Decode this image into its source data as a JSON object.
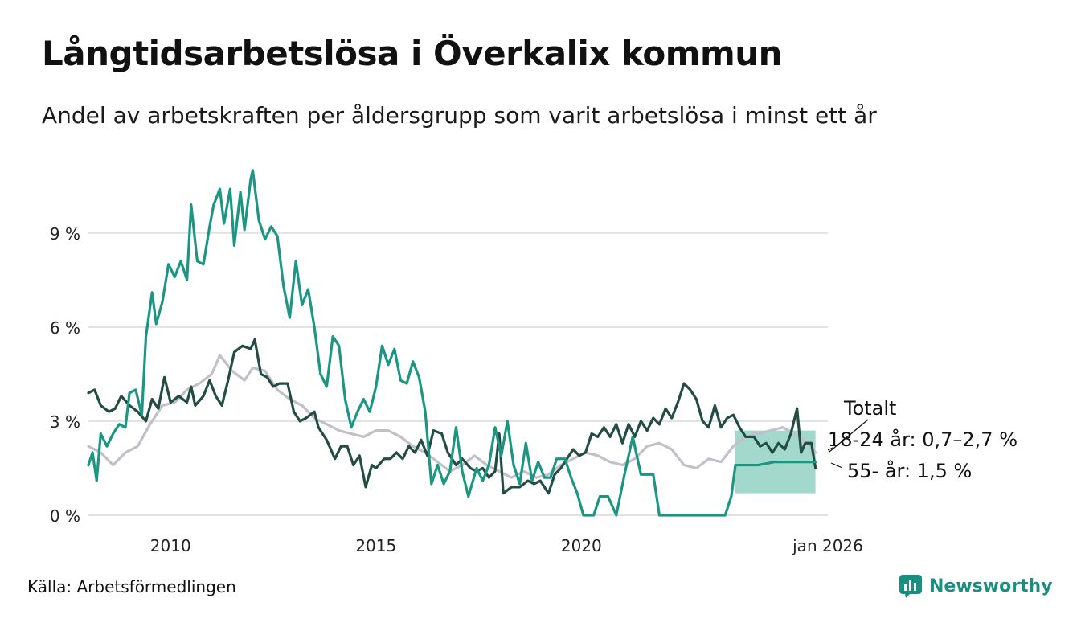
{
  "title": "Långtidsarbetslösa i Överkalix kommun",
  "subtitle": "Andel av arbetskraften per åldersgrupp som varit arbetslösa i minst ett år",
  "source": "Källa: Arbetsförmedlingen",
  "brand": "Newsworthy",
  "colors": {
    "youth": "#1a9683",
    "senior": "#234d44",
    "total": "#c2bfca",
    "band": "#a3d8cc",
    "grid": "#e1e1e1"
  },
  "chart_data": {
    "type": "line",
    "xlim": [
      2008.0,
      2026.0
    ],
    "ylim": [
      0,
      11.3
    ],
    "y_ticks": [
      {
        "value": 0,
        "label": "0 %"
      },
      {
        "value": 3,
        "label": "3 %"
      },
      {
        "value": 6,
        "label": "6 %"
      },
      {
        "value": 9,
        "label": "9 %"
      }
    ],
    "x_ticks": [
      {
        "value": 2010.0,
        "label": "2010"
      },
      {
        "value": 2015.0,
        "label": "2015"
      },
      {
        "value": 2020.0,
        "label": "2020"
      },
      {
        "value": 2026.0,
        "label": "jan 2026"
      }
    ],
    "annotations": {
      "total": "Totalt",
      "youth": "18-24 år: 0,7–2,7 %",
      "senior": "55- år: 1,5 %"
    },
    "series": [
      {
        "name": "Totalt",
        "color": "#c2bfca",
        "points": [
          [
            2008.0,
            2.2
          ],
          [
            2008.3,
            2.0
          ],
          [
            2008.6,
            1.6
          ],
          [
            2008.9,
            2.0
          ],
          [
            2009.2,
            2.2
          ],
          [
            2009.5,
            2.9
          ],
          [
            2009.8,
            3.5
          ],
          [
            2010.1,
            3.6
          ],
          [
            2010.4,
            4.0
          ],
          [
            2010.7,
            4.2
          ],
          [
            2011.0,
            4.5
          ],
          [
            2011.2,
            5.1
          ],
          [
            2011.5,
            4.6
          ],
          [
            2011.8,
            4.3
          ],
          [
            2012.0,
            4.7
          ],
          [
            2012.3,
            4.6
          ],
          [
            2012.6,
            4.0
          ],
          [
            2012.9,
            3.7
          ],
          [
            2013.2,
            3.5
          ],
          [
            2013.5,
            3.1
          ],
          [
            2013.8,
            2.9
          ],
          [
            2014.1,
            2.7
          ],
          [
            2014.4,
            2.6
          ],
          [
            2014.7,
            2.5
          ],
          [
            2015.0,
            2.7
          ],
          [
            2015.3,
            2.7
          ],
          [
            2015.6,
            2.5
          ],
          [
            2015.9,
            2.2
          ],
          [
            2016.2,
            2.0
          ],
          [
            2016.5,
            1.7
          ],
          [
            2016.8,
            1.4
          ],
          [
            2017.1,
            1.6
          ],
          [
            2017.4,
            1.9
          ],
          [
            2017.7,
            1.6
          ],
          [
            2018.0,
            1.4
          ],
          [
            2018.3,
            1.2
          ],
          [
            2018.6,
            1.4
          ],
          [
            2018.9,
            1.2
          ],
          [
            2019.2,
            1.3
          ],
          [
            2019.5,
            1.6
          ],
          [
            2019.8,
            1.8
          ],
          [
            2020.1,
            2.0
          ],
          [
            2020.4,
            1.9
          ],
          [
            2020.7,
            1.7
          ],
          [
            2021.0,
            1.6
          ],
          [
            2021.3,
            1.8
          ],
          [
            2021.6,
            2.2
          ],
          [
            2021.9,
            2.3
          ],
          [
            2022.2,
            2.1
          ],
          [
            2022.5,
            1.6
          ],
          [
            2022.8,
            1.5
          ],
          [
            2023.1,
            1.8
          ],
          [
            2023.4,
            1.7
          ],
          [
            2023.7,
            2.2
          ],
          [
            2024.0,
            2.5
          ],
          [
            2024.3,
            2.6
          ],
          [
            2024.6,
            2.7
          ],
          [
            2024.9,
            2.8
          ],
          [
            2025.2,
            2.6
          ],
          [
            2025.5,
            2.3
          ],
          [
            2025.7,
            2.0
          ]
        ]
      },
      {
        "name": "55- år",
        "color": "#234d44",
        "points": [
          [
            2008.0,
            3.9
          ],
          [
            2008.15,
            4.0
          ],
          [
            2008.3,
            3.5
          ],
          [
            2008.5,
            3.3
          ],
          [
            2008.65,
            3.4
          ],
          [
            2008.8,
            3.8
          ],
          [
            2009.0,
            3.5
          ],
          [
            2009.2,
            3.3
          ],
          [
            2009.4,
            3.0
          ],
          [
            2009.55,
            3.7
          ],
          [
            2009.7,
            3.4
          ],
          [
            2009.85,
            4.4
          ],
          [
            2010.0,
            3.6
          ],
          [
            2010.2,
            3.8
          ],
          [
            2010.4,
            3.6
          ],
          [
            2010.5,
            4.1
          ],
          [
            2010.6,
            3.5
          ],
          [
            2010.8,
            3.8
          ],
          [
            2010.95,
            4.3
          ],
          [
            2011.1,
            3.8
          ],
          [
            2011.25,
            3.5
          ],
          [
            2011.4,
            4.3
          ],
          [
            2011.55,
            5.2
          ],
          [
            2011.75,
            5.4
          ],
          [
            2011.95,
            5.3
          ],
          [
            2012.05,
            5.6
          ],
          [
            2012.2,
            4.5
          ],
          [
            2012.35,
            4.4
          ],
          [
            2012.5,
            4.1
          ],
          [
            2012.65,
            4.2
          ],
          [
            2012.85,
            4.2
          ],
          [
            2013.0,
            3.3
          ],
          [
            2013.15,
            3.0
          ],
          [
            2013.3,
            3.1
          ],
          [
            2013.5,
            3.3
          ],
          [
            2013.6,
            2.8
          ],
          [
            2013.8,
            2.4
          ],
          [
            2014.0,
            1.8
          ],
          [
            2014.15,
            2.2
          ],
          [
            2014.3,
            2.2
          ],
          [
            2014.45,
            1.6
          ],
          [
            2014.6,
            1.9
          ],
          [
            2014.75,
            0.9
          ],
          [
            2014.9,
            1.6
          ],
          [
            2015.0,
            1.5
          ],
          [
            2015.2,
            1.8
          ],
          [
            2015.35,
            1.8
          ],
          [
            2015.5,
            2.0
          ],
          [
            2015.65,
            1.8
          ],
          [
            2015.8,
            2.2
          ],
          [
            2015.95,
            2.0
          ],
          [
            2016.1,
            2.4
          ],
          [
            2016.25,
            1.9
          ],
          [
            2016.4,
            2.7
          ],
          [
            2016.6,
            2.6
          ],
          [
            2016.75,
            2.0
          ],
          [
            2016.95,
            1.6
          ],
          [
            2017.1,
            1.8
          ],
          [
            2017.3,
            1.5
          ],
          [
            2017.45,
            1.4
          ],
          [
            2017.6,
            1.5
          ],
          [
            2017.75,
            1.2
          ],
          [
            2017.9,
            1.4
          ],
          [
            2018.0,
            2.6
          ],
          [
            2018.1,
            0.7
          ],
          [
            2018.3,
            0.9
          ],
          [
            2018.5,
            0.9
          ],
          [
            2018.7,
            1.1
          ],
          [
            2018.85,
            1.0
          ],
          [
            2019.0,
            1.1
          ],
          [
            2019.2,
            0.7
          ],
          [
            2019.35,
            1.3
          ],
          [
            2019.5,
            1.5
          ],
          [
            2019.65,
            1.8
          ],
          [
            2019.8,
            2.1
          ],
          [
            2019.95,
            1.9
          ],
          [
            2020.1,
            2.0
          ],
          [
            2020.25,
            2.6
          ],
          [
            2020.4,
            2.5
          ],
          [
            2020.55,
            2.8
          ],
          [
            2020.7,
            2.5
          ],
          [
            2020.85,
            2.9
          ],
          [
            2021.0,
            2.3
          ],
          [
            2021.15,
            2.9
          ],
          [
            2021.3,
            2.5
          ],
          [
            2021.45,
            3.0
          ],
          [
            2021.6,
            2.7
          ],
          [
            2021.75,
            3.1
          ],
          [
            2021.9,
            2.9
          ],
          [
            2022.05,
            3.4
          ],
          [
            2022.2,
            3.1
          ],
          [
            2022.35,
            3.6
          ],
          [
            2022.5,
            4.2
          ],
          [
            2022.65,
            4.0
          ],
          [
            2022.8,
            3.7
          ],
          [
            2022.95,
            3.0
          ],
          [
            2023.1,
            2.8
          ],
          [
            2023.25,
            3.5
          ],
          [
            2023.4,
            2.8
          ],
          [
            2023.55,
            3.1
          ],
          [
            2023.7,
            3.2
          ],
          [
            2023.85,
            2.8
          ],
          [
            2024.0,
            2.5
          ],
          [
            2024.2,
            2.5
          ],
          [
            2024.35,
            2.2
          ],
          [
            2024.5,
            2.3
          ],
          [
            2024.65,
            2.0
          ],
          [
            2024.8,
            2.3
          ],
          [
            2024.95,
            2.1
          ],
          [
            2025.1,
            2.6
          ],
          [
            2025.25,
            3.4
          ],
          [
            2025.35,
            2.0
          ],
          [
            2025.45,
            2.3
          ],
          [
            2025.6,
            2.3
          ],
          [
            2025.7,
            1.5
          ]
        ]
      },
      {
        "name": "18-24 år",
        "color": "#1a9683",
        "points": [
          [
            2008.0,
            1.6
          ],
          [
            2008.1,
            2.0
          ],
          [
            2008.2,
            1.1
          ],
          [
            2008.3,
            2.6
          ],
          [
            2008.45,
            2.2
          ],
          [
            2008.6,
            2.6
          ],
          [
            2008.75,
            2.9
          ],
          [
            2008.9,
            2.8
          ],
          [
            2009.0,
            3.9
          ],
          [
            2009.15,
            4.0
          ],
          [
            2009.3,
            3.2
          ],
          [
            2009.4,
            5.7
          ],
          [
            2009.55,
            7.1
          ],
          [
            2009.65,
            6.1
          ],
          [
            2009.8,
            6.8
          ],
          [
            2009.95,
            8.0
          ],
          [
            2010.1,
            7.6
          ],
          [
            2010.25,
            8.1
          ],
          [
            2010.4,
            7.5
          ],
          [
            2010.5,
            9.9
          ],
          [
            2010.65,
            8.1
          ],
          [
            2010.8,
            8.0
          ],
          [
            2010.95,
            9.2
          ],
          [
            2011.05,
            9.9
          ],
          [
            2011.2,
            10.4
          ],
          [
            2011.3,
            9.3
          ],
          [
            2011.45,
            10.4
          ],
          [
            2011.55,
            8.6
          ],
          [
            2011.7,
            10.3
          ],
          [
            2011.8,
            9.1
          ],
          [
            2011.95,
            10.7
          ],
          [
            2012.0,
            11.0
          ],
          [
            2012.15,
            9.4
          ],
          [
            2012.3,
            8.8
          ],
          [
            2012.45,
            9.2
          ],
          [
            2012.6,
            8.9
          ],
          [
            2012.75,
            7.3
          ],
          [
            2012.9,
            6.3
          ],
          [
            2013.05,
            8.1
          ],
          [
            2013.2,
            6.7
          ],
          [
            2013.35,
            7.2
          ],
          [
            2013.5,
            6.0
          ],
          [
            2013.65,
            4.5
          ],
          [
            2013.8,
            4.1
          ],
          [
            2013.95,
            5.7
          ],
          [
            2014.1,
            5.4
          ],
          [
            2014.25,
            3.7
          ],
          [
            2014.4,
            2.8
          ],
          [
            2014.55,
            3.3
          ],
          [
            2014.7,
            3.7
          ],
          [
            2014.85,
            3.3
          ],
          [
            2015.0,
            4.1
          ],
          [
            2015.15,
            5.4
          ],
          [
            2015.3,
            4.8
          ],
          [
            2015.45,
            5.3
          ],
          [
            2015.6,
            4.3
          ],
          [
            2015.75,
            4.2
          ],
          [
            2015.9,
            4.9
          ],
          [
            2016.05,
            4.4
          ],
          [
            2016.2,
            3.3
          ],
          [
            2016.35,
            1.0
          ],
          [
            2016.5,
            1.6
          ],
          [
            2016.65,
            1.0
          ],
          [
            2016.8,
            1.4
          ],
          [
            2016.95,
            2.8
          ],
          [
            2017.1,
            1.4
          ],
          [
            2017.25,
            0.6
          ],
          [
            2017.45,
            1.5
          ],
          [
            2017.6,
            1.1
          ],
          [
            2017.75,
            1.6
          ],
          [
            2017.9,
            2.8
          ],
          [
            2018.05,
            1.9
          ],
          [
            2018.2,
            3.0
          ],
          [
            2018.35,
            1.6
          ],
          [
            2018.5,
            1.0
          ],
          [
            2018.65,
            2.3
          ],
          [
            2018.8,
            1.1
          ],
          [
            2018.95,
            1.7
          ],
          [
            2019.1,
            1.2
          ],
          [
            2019.25,
            1.2
          ],
          [
            2019.4,
            1.8
          ],
          [
            2019.6,
            1.8
          ],
          [
            2019.75,
            1.2
          ],
          [
            2019.9,
            0.7
          ],
          [
            2020.05,
            0.0
          ],
          [
            2020.3,
            0.0
          ],
          [
            2020.45,
            0.6
          ],
          [
            2020.65,
            0.6
          ],
          [
            2020.85,
            0.0
          ],
          [
            2021.05,
            1.3
          ],
          [
            2021.25,
            2.5
          ],
          [
            2021.45,
            1.3
          ],
          [
            2021.75,
            1.3
          ],
          [
            2021.9,
            0.0
          ],
          [
            2022.4,
            0.0
          ],
          [
            2022.9,
            0.0
          ],
          [
            2023.3,
            0.0
          ],
          [
            2023.5,
            0.0
          ],
          [
            2023.65,
            0.6
          ],
          [
            2023.75,
            1.6
          ],
          [
            2024.0,
            1.6
          ],
          [
            2024.3,
            1.6
          ],
          [
            2024.7,
            1.7
          ],
          [
            2025.0,
            1.7
          ],
          [
            2025.4,
            1.7
          ],
          [
            2025.7,
            1.7
          ]
        ]
      }
    ],
    "band": {
      "name": "18-24 år intervall",
      "points": [
        [
          2023.75,
          0.7,
          2.7
        ],
        [
          2024.5,
          0.7,
          2.7
        ],
        [
          2025.0,
          0.7,
          2.7
        ],
        [
          2025.7,
          0.7,
          2.7
        ]
      ]
    }
  }
}
